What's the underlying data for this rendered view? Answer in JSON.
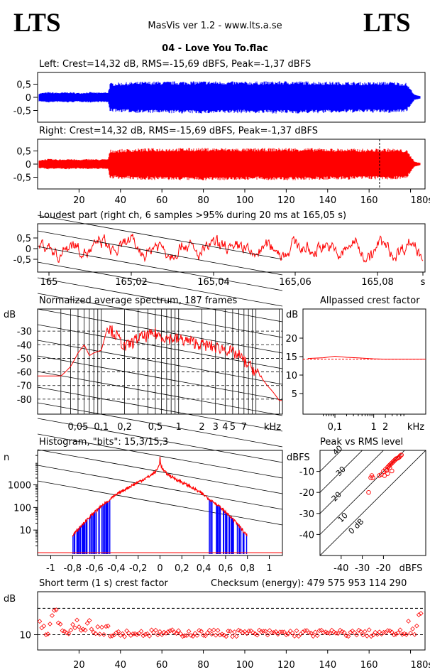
{
  "header": {
    "logo_left": "LTS",
    "logo_right": "LTS",
    "app": "MasVis ver 1.2 - www.lts.a.se",
    "track": "04 - Love You To.flac"
  },
  "left_panel": {
    "title": "Left: Crest=14,32 dB, RMS=-15,69 dBFS, Peak=-1,37 dBFS",
    "color": "#0000ff"
  },
  "right_panel": {
    "title": "Right: Crest=14,32 dB, RMS=-15,69 dBFS, Peak=-1,37 dBFS",
    "color": "#ff0000"
  },
  "loud_panel": {
    "title": "Loudest part (right ch, 6 samples >95% during 20 ms at 165,05 s)"
  },
  "spectrum_panel": {
    "title": "Normalized average spectrum, 187 frames"
  },
  "crest_panel": {
    "title": "Allpassed crest factor"
  },
  "hist_panel": {
    "title": "Histogram, \"bits\": 15,3/15,3"
  },
  "pvr_panel": {
    "title": "Peak vs RMS level"
  },
  "short_panel": {
    "title": "Short term (1 s) crest factor",
    "checksum": "Checksum (energy):   479 575 953 114 290"
  },
  "chart_data": [
    {
      "type": "line",
      "title": "Left: Crest=14,32 dB, RMS=-15,69 dBFS, Peak=-1,37 dBFS",
      "xlim": [
        0,
        187
      ],
      "ylim": [
        -1,
        1
      ],
      "yticks": [
        "0,5",
        "0",
        "-0,5"
      ],
      "x": [
        0,
        5,
        10,
        15,
        20,
        25,
        30,
        34,
        35,
        50,
        80,
        100,
        120,
        140,
        160,
        170,
        178,
        182,
        187
      ],
      "series": [
        {
          "name": "envelope",
          "values": [
            0.15,
            0.2,
            0.18,
            0.2,
            0.17,
            0.2,
            0.18,
            0.2,
            0.55,
            0.6,
            0.62,
            0.6,
            0.62,
            0.6,
            0.58,
            0.6,
            0.55,
            0.1,
            0.0
          ]
        }
      ]
    },
    {
      "type": "line",
      "title": "Right: Crest=14,32 dB, RMS=-15,69 dBFS, Peak=-1,37 dBFS",
      "xlim": [
        0,
        187
      ],
      "ylim": [
        -1,
        1
      ],
      "yticks": [
        "0,5",
        "0",
        "-0,5"
      ],
      "xticks": [
        "20",
        "40",
        "60",
        "80",
        "100",
        "120",
        "140",
        "160",
        "180s"
      ],
      "marker_x": 165.05,
      "x": [
        0,
        5,
        10,
        15,
        20,
        25,
        30,
        34,
        35,
        50,
        80,
        100,
        120,
        140,
        160,
        170,
        178,
        182,
        187
      ],
      "series": [
        {
          "name": "envelope",
          "values": [
            0.15,
            0.2,
            0.18,
            0.2,
            0.17,
            0.2,
            0.18,
            0.2,
            0.55,
            0.6,
            0.62,
            0.6,
            0.62,
            0.6,
            0.58,
            0.6,
            0.55,
            0.1,
            0.0
          ]
        }
      ]
    },
    {
      "type": "line",
      "title": "Loudest part (right ch, 6 samples >95% during 20 ms at 165,05 s)",
      "xlim": [
        164.96,
        165.09
      ],
      "ylim": [
        -1,
        1
      ],
      "xticks": [
        "165",
        "165,02",
        "165,04",
        "165,06",
        "165,08",
        "s"
      ],
      "yticks": [
        "0,5",
        "0",
        "-0,5"
      ]
    },
    {
      "type": "line",
      "title": "Normalized average spectrum, 187 frames",
      "ylabel": "dB",
      "yticks": [
        "-30",
        "-40",
        "-50",
        "-60",
        "-70",
        "-80"
      ],
      "xticks": [
        "0,05",
        "0,1",
        "0,2",
        "0,5",
        "1",
        "2",
        "3",
        "4",
        "5",
        "7",
        "kHz"
      ],
      "x": [
        0.02,
        0.03,
        0.04,
        0.05,
        0.06,
        0.07,
        0.08,
        0.1,
        0.12,
        0.15,
        0.2,
        0.3,
        0.5,
        0.7,
        1,
        1.5,
        2,
        3,
        4,
        5,
        6,
        7,
        8,
        10,
        14,
        20
      ],
      "values": [
        -63,
        -63,
        -56,
        -46,
        -40,
        -48,
        -46,
        -44,
        -27,
        -32,
        -42,
        -35,
        -32,
        -35,
        -36,
        -38,
        -40,
        -42,
        -43,
        -46,
        -48,
        -52,
        -55,
        -60,
        -70,
        -81
      ]
    },
    {
      "type": "line",
      "title": "Allpassed crest factor",
      "ylabel": "dB",
      "yticks": [
        "20",
        "15",
        "10",
        "5"
      ],
      "xticks": [
        "0,1",
        "1",
        "2",
        "kHz"
      ],
      "x": [
        0.02,
        0.05,
        0.1,
        0.2,
        0.5,
        1,
        2,
        5,
        20
      ],
      "values": [
        14.5,
        14.7,
        15.1,
        14.8,
        14.6,
        14.4,
        14.3,
        14.3,
        14.3
      ]
    },
    {
      "type": "line",
      "title": "Histogram, \"bits\": 15,3/15,3",
      "ylabel": "n",
      "yticks": [
        "1000",
        "100",
        "10"
      ],
      "xticks": [
        "-1",
        "-0,8",
        "-0,6",
        "-0,4",
        "-0,2",
        "0",
        "0,2",
        "0,4",
        "0,6",
        "0,8",
        "1"
      ]
    },
    {
      "type": "scatter",
      "title": "Peak vs RMS level",
      "ylabel": "dBFS",
      "xlabel": "dBFS",
      "xticks": [
        "-40",
        "-30",
        "-20"
      ],
      "yticks": [
        "-10",
        "-20",
        "-30",
        "-40"
      ],
      "diag_labels": [
        "40",
        "30",
        "20",
        "10",
        "0 dB"
      ],
      "x": [
        -27,
        -26,
        -25.5,
        -25,
        -22,
        -21,
        -20,
        -19,
        -18.5,
        -18,
        -17.5,
        -17,
        -16.5,
        -16,
        -15.5,
        -15,
        -14.5,
        -14,
        -13.5,
        -13,
        -12.5,
        -12,
        -11.5,
        -16,
        -18,
        -19.5,
        -17
      ],
      "y": [
        -20,
        -13,
        -12,
        -13,
        -12,
        -11.5,
        -10,
        -9,
        -9.5,
        -8,
        -7.5,
        -7,
        -6.5,
        -6,
        -5.5,
        -5,
        -4.5,
        -4,
        -3.8,
        -3.5,
        -3.2,
        -2.5,
        -2.2,
        -9.8,
        -11,
        -12,
        -8.3
      ]
    },
    {
      "type": "scatter",
      "title": "Short term (1 s) crest factor",
      "ylabel": "dB",
      "yticks": [
        "10"
      ],
      "xticks": [
        "20",
        "40",
        "60",
        "80",
        "100",
        "120",
        "140",
        "160",
        "180s"
      ]
    }
  ]
}
